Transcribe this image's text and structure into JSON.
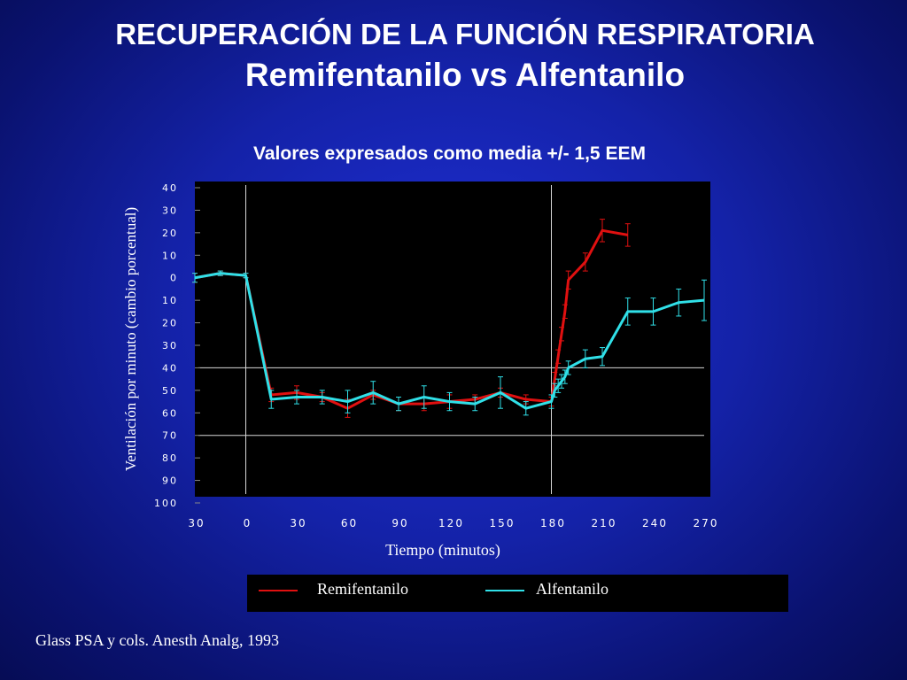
{
  "slide": {
    "title_line1": "RECUPERACIÓN DE LA FUNCIÓN RESPIRATORIA",
    "title_line2": "Remifentanilo vs Alfentanilo",
    "citation": "Glass PSA y cols. Anesth Analg, 1993"
  },
  "chart_data": {
    "type": "line",
    "title": "Valores expresados como media +/- 1,5 EEM",
    "xlabel": "Tiempo (minutos)",
    "ylabel": "Ventilación por minuto (cambio porcentual)",
    "xlim": [
      -30,
      270
    ],
    "ylim": [
      -100,
      40
    ],
    "x_ticks": [
      -30,
      0,
      30,
      60,
      90,
      120,
      150,
      180,
      210,
      240,
      270
    ],
    "x_tick_labels": [
      "30",
      "0",
      "30",
      "60",
      "90",
      "120",
      "150",
      "180",
      "210",
      "240",
      "270"
    ],
    "y_ticks": [
      40,
      30,
      20,
      10,
      0,
      -10,
      -20,
      -30,
      -40,
      -50,
      -60,
      -70,
      -80,
      -90,
      -100
    ],
    "y_tick_labels": [
      "40",
      "30",
      "20",
      "10",
      "0",
      "10",
      "20",
      "30",
      "40",
      "50",
      "60",
      "70",
      "80",
      "90",
      "100"
    ],
    "reference_lines": {
      "x": [
        0,
        180
      ],
      "y": [
        -40,
        -70
      ]
    },
    "grid": false,
    "legend_position": "bottom",
    "series": [
      {
        "name": "Remifentanilo",
        "color": "#e01010",
        "x": [
          -30,
          -15,
          0,
          15,
          30,
          45,
          60,
          75,
          90,
          105,
          120,
          135,
          150,
          165,
          180,
          182,
          184,
          186,
          188,
          190,
          200,
          210,
          225
        ],
        "y": [
          0,
          2,
          1,
          -52,
          -51,
          -53,
          -58,
          -52,
          -56,
          -56,
          -55,
          -54,
          -51,
          -54,
          -55,
          -45,
          -35,
          -25,
          -15,
          -1,
          7,
          21,
          19
        ],
        "err": [
          2,
          1,
          1,
          3,
          3,
          2,
          4,
          2,
          3,
          3,
          3,
          2,
          2,
          2,
          2,
          3,
          3,
          3,
          3,
          4,
          4,
          5,
          5
        ]
      },
      {
        "name": "Alfentanilo",
        "color": "#30e0e8",
        "x": [
          -30,
          -15,
          0,
          15,
          30,
          45,
          60,
          75,
          90,
          105,
          120,
          135,
          150,
          165,
          180,
          182,
          184,
          186,
          188,
          190,
          200,
          210,
          225,
          240,
          255,
          270
        ],
        "y": [
          0,
          2,
          1,
          -54,
          -53,
          -53,
          -55,
          -51,
          -56,
          -53,
          -55,
          -56,
          -51,
          -58,
          -55,
          -50,
          -48,
          -46,
          -44,
          -40,
          -36,
          -35,
          -15,
          -15,
          -11,
          -10
        ],
        "err": [
          2,
          1,
          1,
          4,
          3,
          3,
          5,
          5,
          3,
          5,
          4,
          3,
          7,
          3,
          3,
          3,
          3,
          3,
          3,
          3,
          4,
          4,
          6,
          6,
          6,
          9
        ]
      }
    ]
  }
}
